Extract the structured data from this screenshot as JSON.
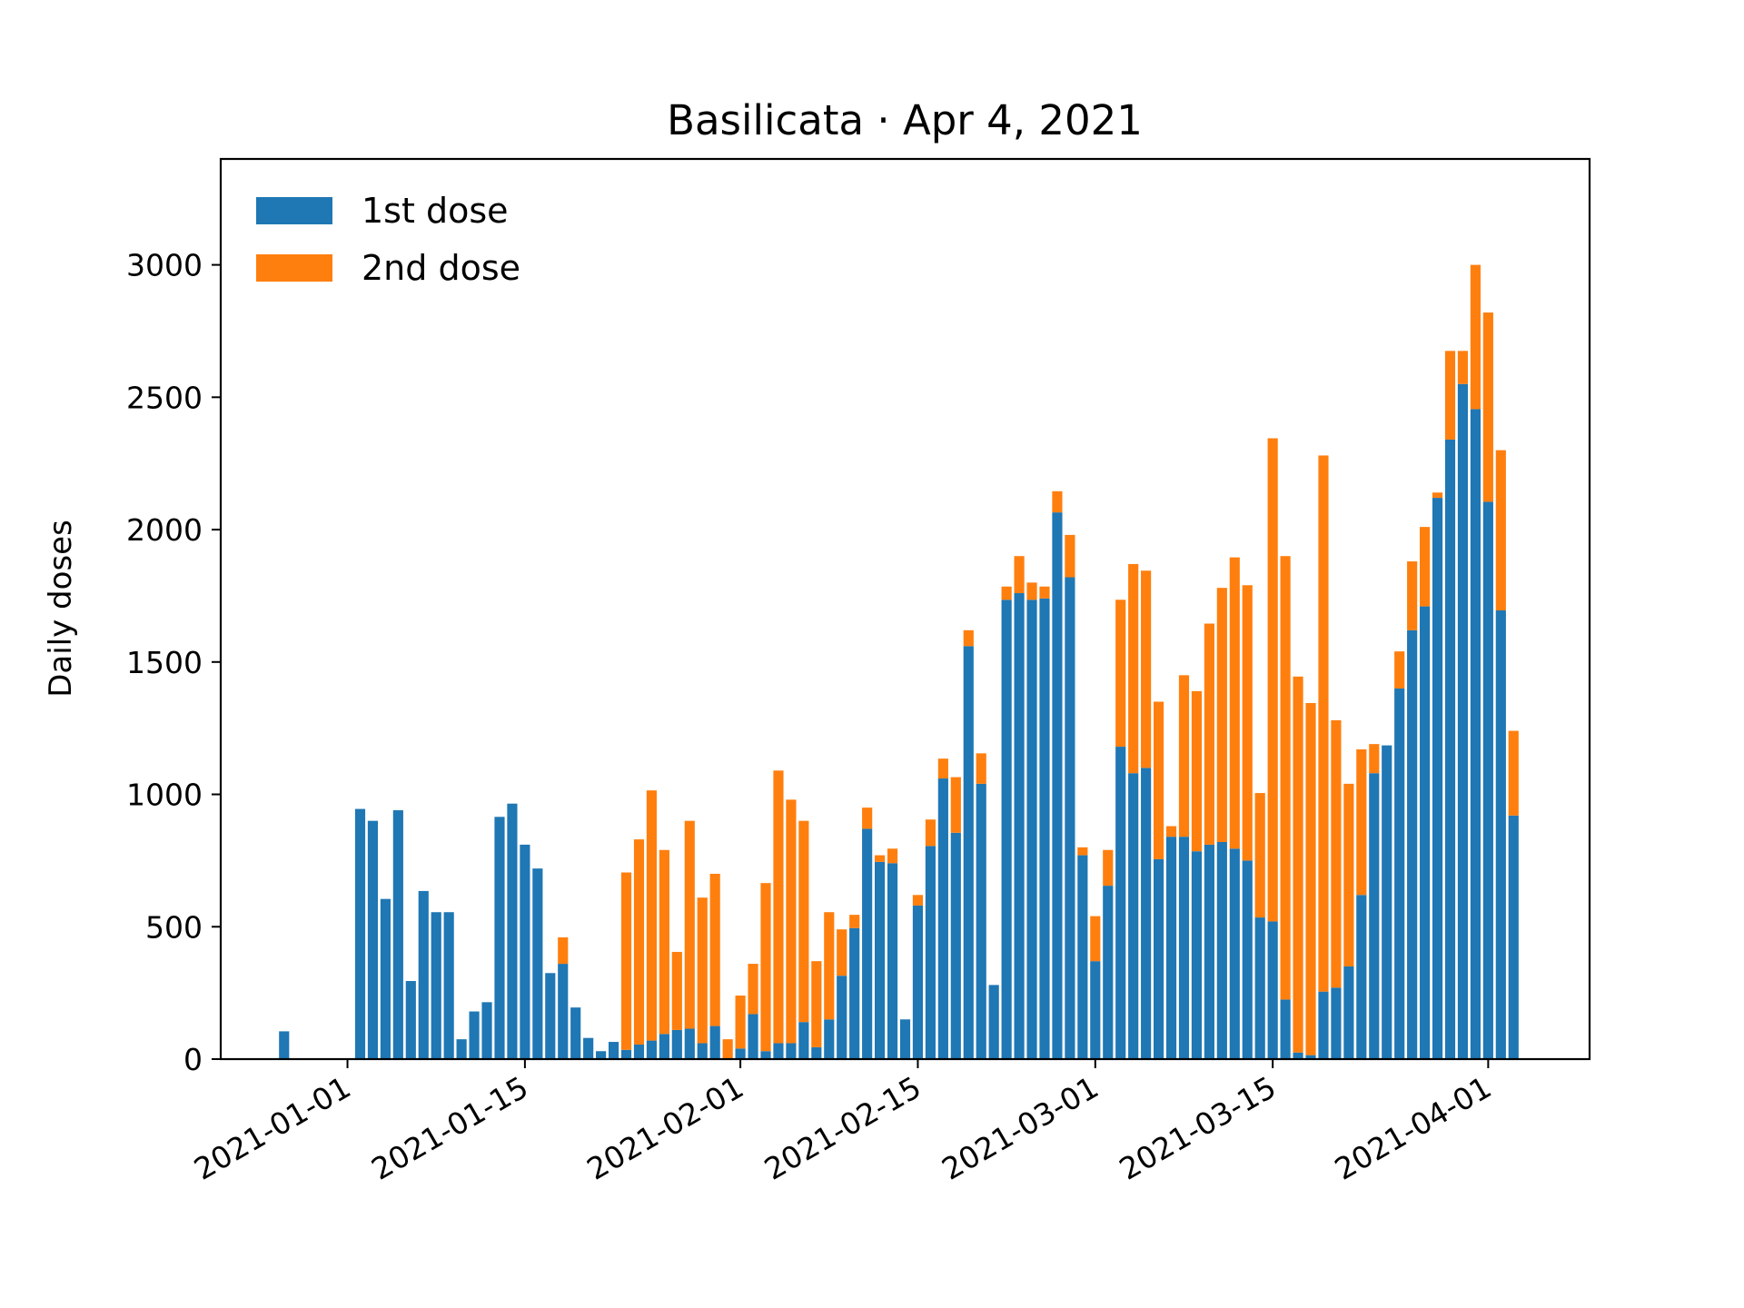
{
  "chart_data": {
    "type": "bar",
    "stacked": true,
    "title": "Basilicata · Apr 4, 2021",
    "xlabel": "",
    "ylabel": "Daily doses",
    "x_start": "2020-12-27",
    "x_end": "2021-04-03",
    "xlim": [
      "2020-12-22",
      "2021-04-09"
    ],
    "ylim": [
      0,
      3400
    ],
    "yticks": [
      0,
      500,
      1000,
      1500,
      2000,
      2500,
      3000
    ],
    "xticks": [
      "2021-01-01",
      "2021-01-15",
      "2021-02-01",
      "2021-02-15",
      "2021-03-01",
      "2021-03-15",
      "2021-04-01"
    ],
    "legend_position": "top-left",
    "grid": false,
    "colors": {
      "first": "#1f77b4",
      "second": "#ff7f0e"
    },
    "series": [
      {
        "name": "1st dose",
        "values": [
          105,
          0,
          0,
          0,
          0,
          0,
          945,
          900,
          605,
          940,
          295,
          635,
          555,
          555,
          75,
          180,
          215,
          915,
          965,
          810,
          720,
          325,
          360,
          195,
          80,
          30,
          65,
          35,
          55,
          70,
          95,
          110,
          115,
          60,
          125,
          0,
          40,
          170,
          30,
          60,
          60,
          140,
          45,
          150,
          315,
          495,
          870,
          745,
          740,
          150,
          580,
          805,
          1060,
          855,
          1560,
          1040,
          280,
          1735,
          1760,
          1735,
          1740,
          2065,
          1820,
          770,
          370,
          655,
          1180,
          1080,
          1100,
          755,
          840,
          840,
          785,
          810,
          820,
          795,
          750,
          535,
          520,
          225,
          25,
          15,
          255,
          270,
          350,
          620,
          1080,
          1185,
          1400,
          1620,
          1710,
          2120,
          2340,
          2550,
          2455,
          2105,
          1695,
          920
        ],
        "second": false
      },
      {
        "name": "2nd dose",
        "values": [
          0,
          0,
          0,
          0,
          0,
          0,
          0,
          0,
          0,
          0,
          0,
          0,
          0,
          0,
          0,
          0,
          0,
          0,
          0,
          0,
          0,
          0,
          100,
          0,
          0,
          0,
          0,
          670,
          775,
          945,
          695,
          295,
          785,
          550,
          575,
          75,
          200,
          190,
          635,
          1030,
          920,
          760,
          325,
          405,
          175,
          50,
          80,
          25,
          55,
          0,
          40,
          100,
          75,
          210,
          60,
          115,
          0,
          50,
          140,
          65,
          45,
          80,
          160,
          30,
          170,
          135,
          555,
          790,
          745,
          595,
          40,
          610,
          605,
          835,
          960,
          1100,
          1040,
          470,
          1825,
          1675,
          1420,
          1330,
          2025,
          1010,
          690,
          550,
          110,
          0,
          140,
          260,
          300,
          20,
          335,
          125,
          545,
          715,
          605,
          320
        ]
      }
    ]
  }
}
